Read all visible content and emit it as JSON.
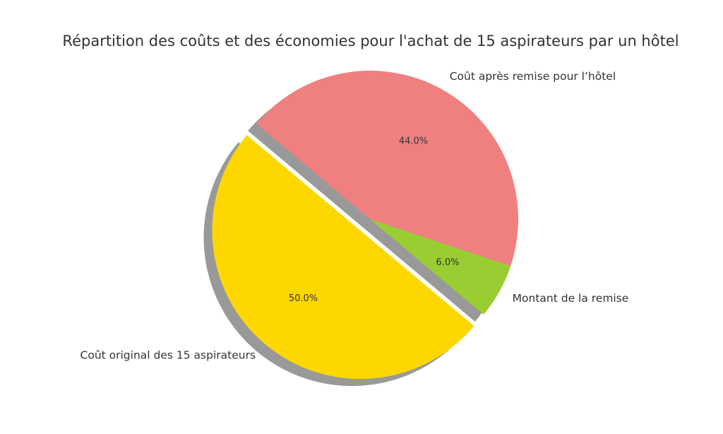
{
  "chart_data": {
    "type": "pie",
    "title": "Répartition des coûts et des économies pour l'achat de 15 aspirateurs par un hôtel",
    "slices": [
      {
        "label": "Coût original des 15 aspirateurs",
        "value": 50.0,
        "pct_label": "50.0%",
        "color": "#FFD700",
        "exploded": true
      },
      {
        "label": "Montant de la remise",
        "value": 6.0,
        "pct_label": "6.0%",
        "color": "#9ACD32",
        "exploded": false
      },
      {
        "label": "Coût après remise pour l’hôtel",
        "value": 44.0,
        "pct_label": "44.0%",
        "color": "#F08080",
        "exploded": false
      }
    ],
    "start_angle_deg": 140,
    "shadow": true
  }
}
